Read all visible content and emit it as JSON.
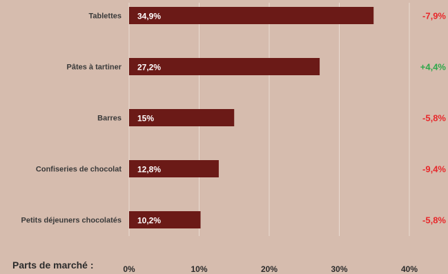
{
  "chart_data": {
    "type": "bar",
    "orientation": "horizontal",
    "categories": [
      "Tablettes",
      "Pâtes à tartiner",
      "Barres",
      "Confiseries de chocolat",
      "Petits déjeuners chocolatés"
    ],
    "values": [
      34.9,
      27.2,
      15,
      12.8,
      10.2
    ],
    "value_labels": [
      "34,9%",
      "27,2%",
      "15%",
      "12,8%",
      "10,2%"
    ],
    "changes": [
      "-7,9%",
      "+4,4%",
      "-5,8%",
      "-9,4%",
      "-5,8%"
    ],
    "change_colors": [
      "#e8282b",
      "#2ea84a",
      "#e8282b",
      "#e8282b",
      "#e8282b"
    ],
    "bar_color": "#6b1a17",
    "xlabel": "Parts de marché :",
    "xticks": [
      "0%",
      "10%",
      "20%",
      "30%",
      "40%"
    ],
    "xlim": [
      0,
      40
    ],
    "grid": true
  }
}
